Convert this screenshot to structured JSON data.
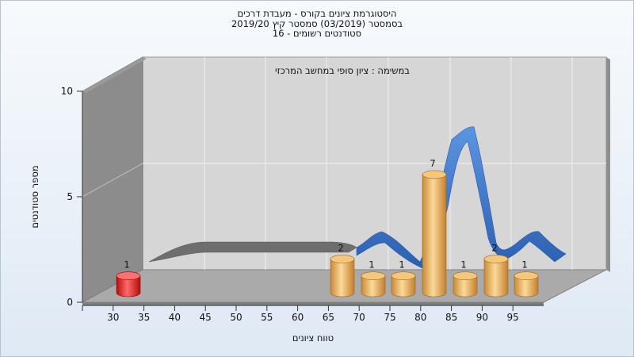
{
  "title_lines": [
    "היסטוגרמת ציונים בקורס - מעבדת דרכים",
    "בסמסטר (03/2019) סמסטר קיץ 2019/20",
    "סטודנטים רשומים - 16"
  ],
  "colors": {
    "bar_normal": "#e3a84f",
    "bar_fail": "#e01818",
    "curve": "#3c78cc",
    "back_wall": "#d5d5d5",
    "side_wall": "#8a8a8a",
    "floor": "#a9a9a9"
  },
  "chart_data": {
    "type": "bar",
    "title": "היסטוגרמת ציונים בקורס - מעבדת דרכים",
    "subtitle": "במשימה : ציון סופי במחשב המרכזי",
    "xlabel": "טווח ציונים",
    "ylabel": "מספר סטודנטים",
    "ylim": [
      0,
      10
    ],
    "yticks": [
      "0",
      "5",
      "10"
    ],
    "xticks": [
      "30",
      "35",
      "40",
      "45",
      "50",
      "55",
      "60",
      "65",
      "70",
      "75",
      "80",
      "85",
      "90",
      "95"
    ],
    "bars": [
      {
        "bin": "<30",
        "value": 1,
        "label": "1",
        "fail": true
      },
      {
        "bin": "65-70",
        "value": 2,
        "label": "2",
        "fail": false
      },
      {
        "bin": "70-75",
        "value": 1,
        "label": "1",
        "fail": false
      },
      {
        "bin": "75-80",
        "value": 1,
        "label": "1",
        "fail": false
      },
      {
        "bin": "80-85",
        "value": 7,
        "label": "7",
        "fail": false
      },
      {
        "bin": "85-90",
        "value": 1,
        "label": "1",
        "fail": false
      },
      {
        "bin": "90-95",
        "value": 2,
        "label": "2",
        "fail": false
      },
      {
        "bin": "95-100",
        "value": 1,
        "label": "1",
        "fail": false
      }
    ]
  }
}
